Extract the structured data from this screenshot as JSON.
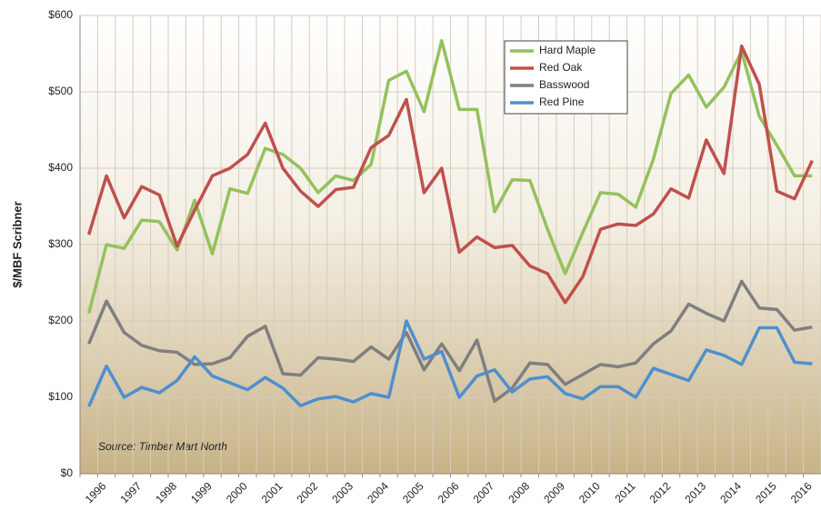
{
  "chart_data": {
    "type": "line",
    "y_label": "$/MBF Scribner",
    "annotation": "Source: Timber Mart North",
    "categories": [
      "1996",
      null,
      "1997",
      null,
      "1998",
      null,
      "1999",
      null,
      "2000",
      null,
      "2001",
      null,
      "2002",
      null,
      "2003",
      null,
      "2004",
      null,
      "2005",
      null,
      "2006",
      null,
      "2007",
      null,
      "2008",
      null,
      "2009",
      null,
      "2010",
      null,
      "2011",
      null,
      "2012",
      null,
      "2013",
      null,
      "2014",
      null,
      "2015",
      null,
      "2016",
      null
    ],
    "series": [
      {
        "name": "Hard Maple",
        "color": "#94c15c",
        "values": [
          210,
          300,
          295,
          332,
          330,
          293,
          358,
          288,
          373,
          367,
          426,
          418,
          400,
          368,
          390,
          384,
          405,
          515,
          527,
          474,
          567,
          477,
          477,
          343,
          385,
          384,
          320,
          262,
          316,
          368,
          366,
          349,
          412,
          498,
          522,
          480,
          506,
          553,
          468,
          430,
          390,
          390
        ]
      },
      {
        "name": "Red Oak",
        "color": "#c0504d",
        "values": [
          313,
          390,
          335,
          376,
          365,
          298,
          345,
          390,
          400,
          418,
          459,
          400,
          370,
          350,
          372,
          375,
          427,
          443,
          490,
          368,
          400,
          290,
          310,
          296,
          299,
          272,
          262,
          224,
          258,
          320,
          327,
          325,
          340,
          373,
          361,
          437,
          393,
          560,
          510,
          370,
          360,
          410
        ]
      },
      {
        "name": "Basswood",
        "color": "#7f7f7f",
        "values": [
          170,
          226,
          185,
          168,
          161,
          159,
          143,
          144,
          152,
          180,
          193,
          131,
          129,
          152,
          150,
          147,
          166,
          150,
          185,
          136,
          170,
          135,
          175,
          95,
          112,
          145,
          143,
          117,
          130,
          143,
          140,
          145,
          170,
          187,
          222,
          210,
          200,
          252,
          217,
          215,
          188,
          192
        ]
      },
      {
        "name": "Red Pine",
        "color": "#4f8fcf",
        "values": [
          88,
          141,
          100,
          113,
          106,
          122,
          153,
          128,
          119,
          110,
          126,
          112,
          89,
          98,
          101,
          94,
          105,
          100,
          200,
          150,
          160,
          100,
          128,
          136,
          107,
          124,
          127,
          105,
          98,
          114,
          114,
          100,
          138,
          130,
          122,
          162,
          155,
          143,
          191,
          191,
          146,
          144
        ]
      }
    ],
    "ylim": [
      0,
      600
    ],
    "yticks": [
      {
        "value": 0,
        "label": "$0"
      },
      {
        "value": 100,
        "label": "$100"
      },
      {
        "value": 200,
        "label": "$200"
      },
      {
        "value": 300,
        "label": "$300"
      },
      {
        "value": 400,
        "label": "$400"
      },
      {
        "value": 500,
        "label": "$500"
      },
      {
        "value": 600,
        "label": "$600"
      }
    ],
    "grid": true,
    "legend": "top-right"
  }
}
